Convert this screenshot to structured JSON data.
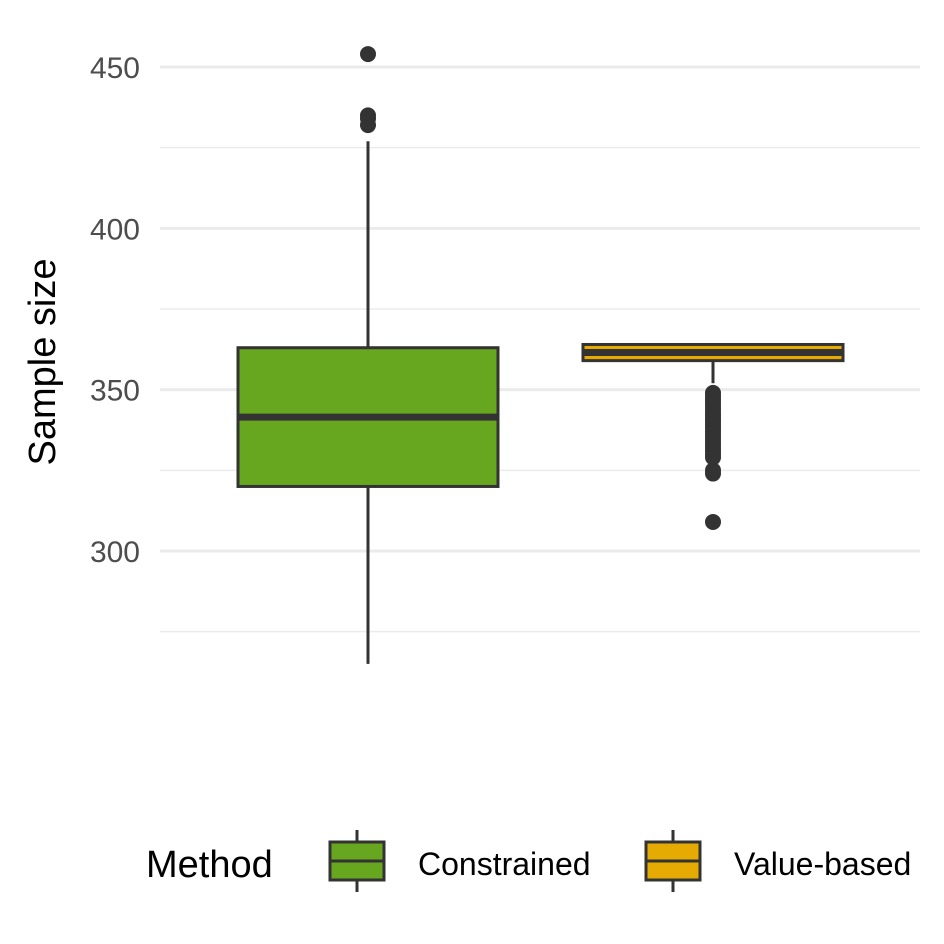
{
  "chart_data": {
    "type": "boxplot",
    "title": "",
    "xlabel": "",
    "ylabel": "Sample size",
    "ylim": [
      255,
      458
    ],
    "y_ticks": [
      300,
      350,
      400,
      450
    ],
    "y_minor_ticks": [
      275,
      325,
      375,
      425
    ],
    "grid": true,
    "legend_title": "Method",
    "legend_position": "bottom",
    "series": [
      {
        "name": "Constrained",
        "color": "#67a61f",
        "min": 265,
        "q1": 320,
        "median": 341.5,
        "q3": 363,
        "max": 427,
        "outliers": [
          432,
          434,
          435,
          454
        ]
      },
      {
        "name": "Value-based",
        "color": "#e6ab02",
        "min": 352,
        "q1": 359,
        "median": 361.5,
        "q3": 364,
        "max": 364,
        "outliers": [
          349,
          348,
          347,
          346,
          345,
          344,
          343,
          342,
          341,
          340,
          339,
          338,
          337,
          336,
          335,
          334,
          333,
          332,
          331,
          330,
          329,
          325,
          324,
          309
        ]
      }
    ]
  }
}
